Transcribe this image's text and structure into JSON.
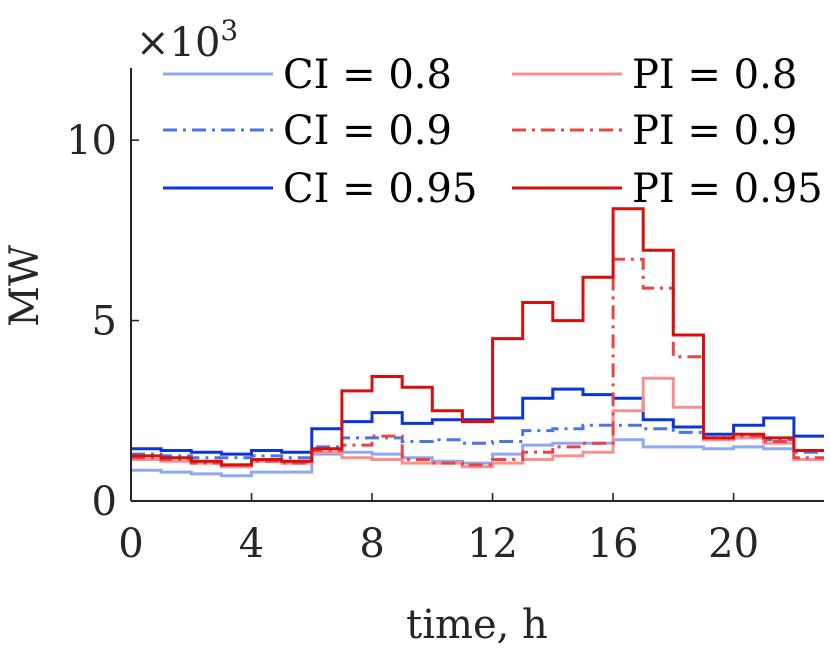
{
  "chart_data": {
    "type": "line",
    "step": "post",
    "title": "",
    "xlabel": "time, h",
    "ylabel": "MW",
    "exponent_label": "×10",
    "exponent_power": "3",
    "xlim": [
      0,
      23
    ],
    "ylim": [
      0,
      12
    ],
    "xticks": [
      0,
      4,
      8,
      12,
      16,
      20
    ],
    "xtick_labels": [
      "0",
      "4",
      "8",
      "12",
      "16",
      "20"
    ],
    "yticks": [
      0,
      5,
      10
    ],
    "ytick_labels": [
      "0",
      "5",
      "10"
    ],
    "grid": false,
    "legend_position": "top",
    "x": [
      0,
      1,
      2,
      3,
      4,
      5,
      6,
      7,
      8,
      9,
      10,
      11,
      12,
      13,
      14,
      15,
      16,
      17,
      18,
      19,
      20,
      21,
      22,
      23
    ],
    "series": [
      {
        "name": "CI = 0.8",
        "color": "#8fa8f5",
        "dash": "solid",
        "values": [
          0.85,
          0.8,
          0.75,
          0.7,
          0.8,
          0.8,
          1.3,
          1.35,
          1.3,
          1.2,
          1.1,
          1.05,
          1.3,
          1.55,
          1.6,
          1.6,
          1.7,
          1.5,
          1.5,
          1.45,
          1.5,
          1.45,
          1.15,
          1.15
        ]
      },
      {
        "name": "CI = 0.9",
        "color": "#4a74e8",
        "dash": "dashdot",
        "values": [
          1.3,
          1.25,
          1.2,
          1.2,
          1.25,
          1.2,
          1.5,
          1.75,
          1.75,
          1.65,
          1.7,
          1.6,
          1.65,
          1.95,
          2.0,
          2.1,
          2.1,
          2.0,
          1.9,
          1.75,
          1.75,
          1.7,
          1.35,
          1.35
        ]
      },
      {
        "name": "CI = 0.95",
        "color": "#0a35d8",
        "dash": "solid",
        "values": [
          1.45,
          1.4,
          1.35,
          1.3,
          1.4,
          1.35,
          2.0,
          2.2,
          2.45,
          2.15,
          2.25,
          2.25,
          2.3,
          2.85,
          3.1,
          2.95,
          2.85,
          2.25,
          2.05,
          1.85,
          2.1,
          2.3,
          1.8,
          1.8
        ]
      },
      {
        "name": "PI = 0.8",
        "color": "#f79090",
        "dash": "solid",
        "values": [
          1.15,
          1.1,
          1.05,
          0.95,
          1.1,
          1.05,
          1.35,
          1.2,
          1.15,
          1.05,
          1.05,
          0.95,
          1.05,
          1.15,
          1.25,
          1.35,
          2.5,
          3.4,
          2.6,
          1.7,
          1.75,
          1.6,
          1.15,
          1.15
        ]
      },
      {
        "name": "PI = 0.9",
        "color": "#ec4444",
        "dash": "dashdot",
        "values": [
          1.2,
          1.15,
          1.05,
          1.0,
          1.1,
          1.05,
          1.4,
          1.55,
          1.8,
          1.15,
          1.05,
          1.0,
          1.15,
          1.35,
          1.5,
          1.6,
          6.7,
          5.9,
          4.0,
          1.75,
          1.8,
          1.65,
          1.2,
          1.2
        ]
      },
      {
        "name": "PI = 0.95",
        "color": "#d80f0f",
        "dash": "solid",
        "values": [
          1.25,
          1.2,
          1.1,
          1.0,
          1.15,
          1.1,
          1.45,
          3.05,
          3.45,
          3.15,
          2.5,
          2.2,
          4.5,
          5.5,
          5.0,
          6.2,
          8.1,
          6.95,
          4.6,
          1.75,
          1.85,
          1.75,
          1.4,
          1.4
        ]
      }
    ]
  }
}
